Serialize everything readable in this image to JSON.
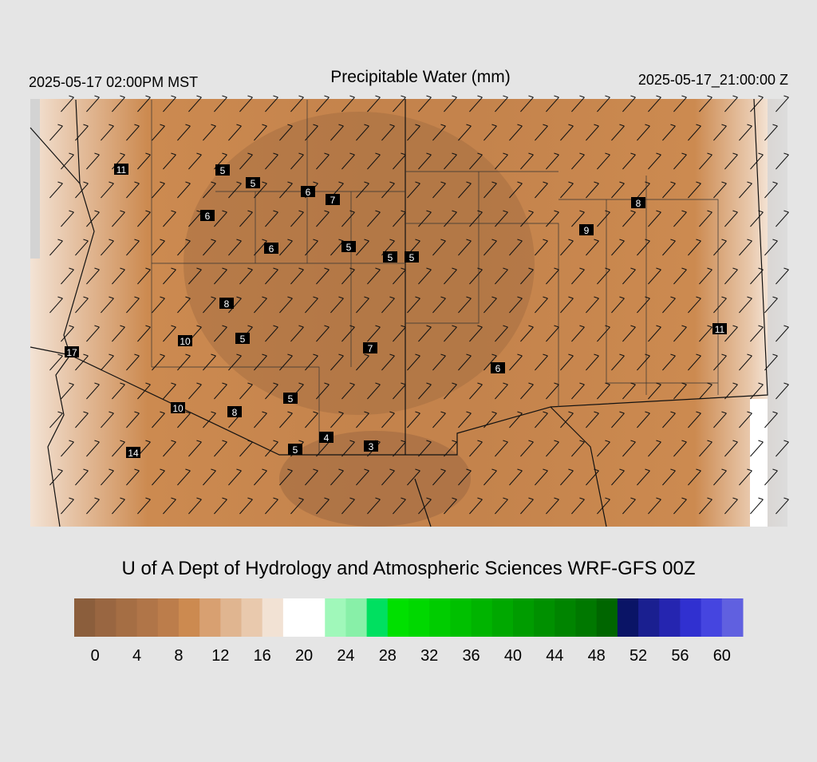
{
  "header": {
    "valid_local": "2025-05-17 02:00PM MST",
    "title": "Precipitable Water (mm)",
    "valid_utc": "2025-05-17_21:00:00 Z"
  },
  "stations": [
    11,
    5,
    5,
    6,
    7,
    6,
    6,
    5,
    5,
    5,
    8,
    9,
    8,
    10,
    5,
    7,
    6,
    11,
    17,
    10,
    8,
    5,
    4,
    3,
    5,
    14
  ],
  "footer": "U of A Dept of Hydrology and Atmospheric Sciences WRF-GFS 00Z",
  "colorbar": {
    "range": [
      -2,
      62
    ],
    "colors": [
      "#8b5e3c",
      "#996641",
      "#a56e44",
      "#b07548",
      "#bc7d4b",
      "#cc8a50",
      "#d8a071",
      "#e0b590",
      "#e9c9ad",
      "#f2e2d4",
      "#ffffff",
      "#ffffff",
      "#a0f8ba",
      "#88f0a8",
      "#00e060",
      "#00e000",
      "#00d800",
      "#00cc00",
      "#00c000",
      "#00b400",
      "#00a800",
      "#009c00",
      "#009000",
      "#008400",
      "#007800",
      "#006600",
      "#0a1466",
      "#1a1f90",
      "#2525b0",
      "#3030d0",
      "#4545e0",
      "#6060e0"
    ],
    "ticks": [
      0,
      4,
      8,
      12,
      16,
      20,
      24,
      28,
      32,
      36,
      40,
      44,
      48,
      52,
      56,
      60
    ]
  }
}
